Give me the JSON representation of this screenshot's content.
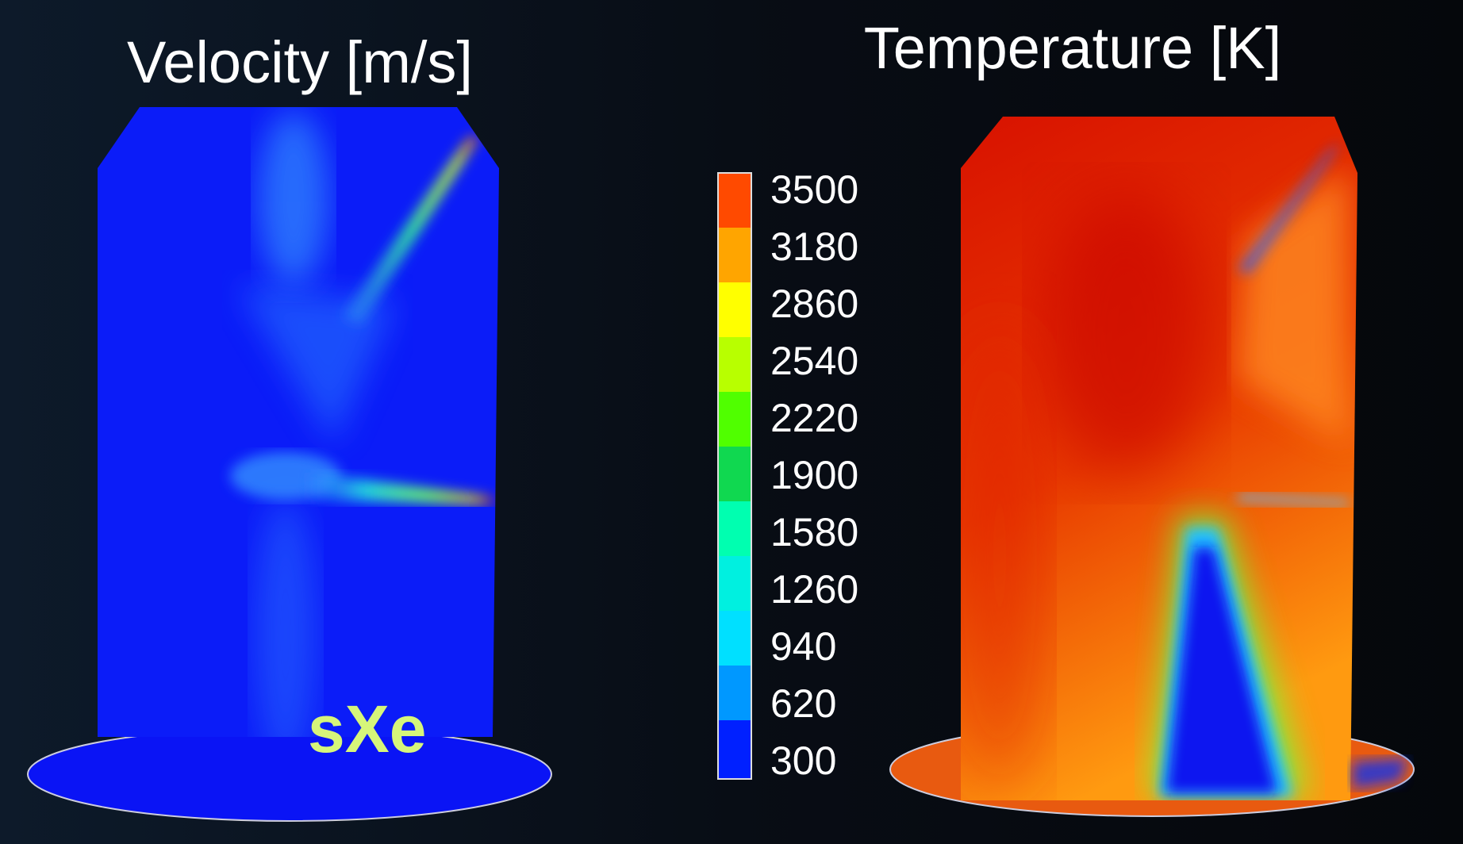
{
  "panels": [
    {
      "title": "Velocity [m/s]",
      "label": "sXe"
    },
    {
      "title": "Temperature [K]"
    }
  ],
  "colorbar": {
    "labels": [
      "3500",
      "3180",
      "2860",
      "2540",
      "2220",
      "1900",
      "1580",
      "1260",
      "940",
      "620",
      "300"
    ]
  }
}
